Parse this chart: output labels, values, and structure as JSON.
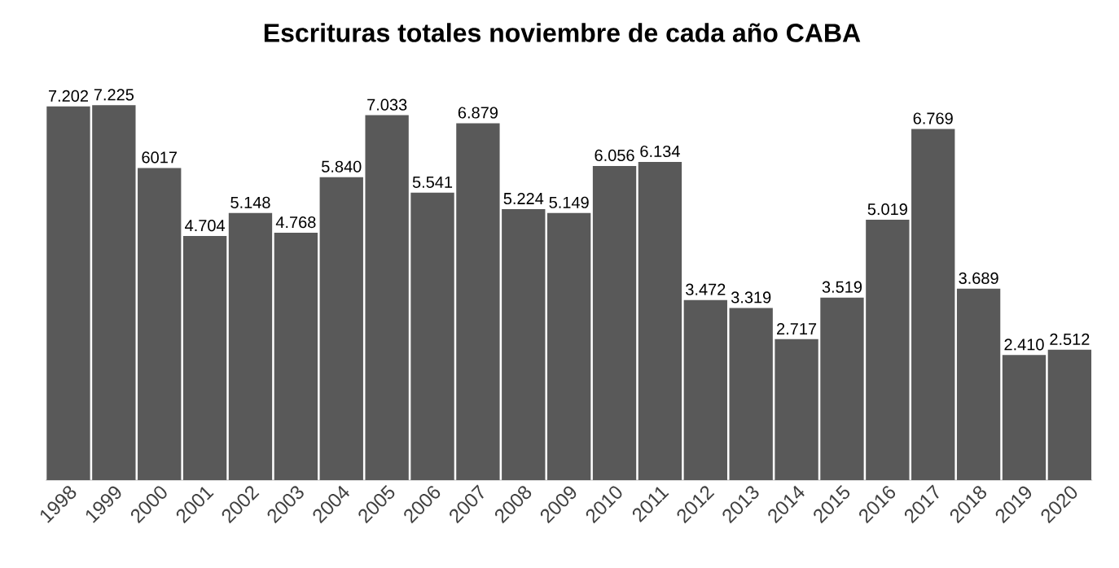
{
  "chart_data": {
    "type": "bar",
    "title": "Escrituras totales noviembre de cada año CABA",
    "categories": [
      "1998",
      "1999",
      "2000",
      "2001",
      "2002",
      "2003",
      "2004",
      "2005",
      "2006",
      "2007",
      "2008",
      "2009",
      "2010",
      "2011",
      "2012",
      "2013",
      "2014",
      "2015",
      "2016",
      "2017",
      "2018",
      "2019",
      "2020"
    ],
    "values": [
      7202,
      7225,
      6017,
      4704,
      5148,
      4768,
      5840,
      7033,
      5541,
      6879,
      5224,
      5149,
      6056,
      6134,
      3472,
      3319,
      2717,
      3519,
      5019,
      6769,
      3689,
      2410,
      2512
    ],
    "value_labels": [
      "7.202",
      "7.225",
      "6017",
      "4.704",
      "5.148",
      "4.768",
      "5.840",
      "7.033",
      "5.541",
      "6.879",
      "5.224",
      "5.149",
      "6.056",
      "6.134",
      "3.472",
      "3.319",
      "2.717",
      "3.519",
      "5.019",
      "6.769",
      "3.689",
      "2.410",
      "2.512"
    ],
    "color": "#595959"
  }
}
